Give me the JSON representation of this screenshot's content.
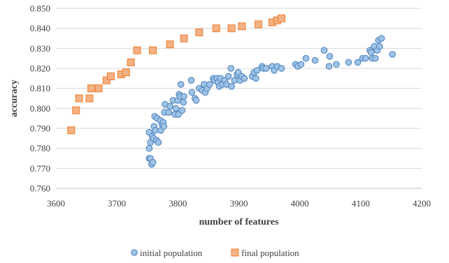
{
  "chart_data": {
    "type": "scatter",
    "xlabel": "number of features",
    "ylabel": "accuracy",
    "xlim": [
      3600,
      4200
    ],
    "ylim": [
      0.76,
      0.85
    ],
    "x_ticks": [
      "3600",
      "3700",
      "3800",
      "3900",
      "4000",
      "4100",
      "4200"
    ],
    "y_ticks": [
      "0.760",
      "0.770",
      "0.780",
      "0.790",
      "0.800",
      "0.810",
      "0.820",
      "0.830",
      "0.840",
      "0.850"
    ],
    "grid": "horizontal",
    "legend_position": "bottom",
    "series": [
      {
        "name": "initial population",
        "color": "#9dc3e6",
        "edge_color": "#4f81bd",
        "marker": "circle",
        "points": [
          [
            3753,
            0.788
          ],
          [
            3753,
            0.78
          ],
          [
            3753,
            0.775
          ],
          [
            3755,
            0.783
          ],
          [
            3755,
            0.775
          ],
          [
            3757,
            0.772
          ],
          [
            3758,
            0.786
          ],
          [
            3759,
            0.773
          ],
          [
            3760,
            0.785
          ],
          [
            3761,
            0.791
          ],
          [
            3762,
            0.796
          ],
          [
            3763,
            0.789
          ],
          [
            3765,
            0.784
          ],
          [
            3766,
            0.795
          ],
          [
            3768,
            0.783
          ],
          [
            3771,
            0.794
          ],
          [
            3772,
            0.789
          ],
          [
            3774,
            0.792
          ],
          [
            3776,
            0.793
          ],
          [
            3777,
            0.791
          ],
          [
            3778,
            0.798
          ],
          [
            3779,
            0.802
          ],
          [
            3785,
            0.798
          ],
          [
            3787,
            0.801
          ],
          [
            3792,
            0.804
          ],
          [
            3795,
            0.797
          ],
          [
            3797,
            0.8
          ],
          [
            3800,
            0.804
          ],
          [
            3801,
            0.797
          ],
          [
            3802,
            0.807
          ],
          [
            3804,
            0.806
          ],
          [
            3805,
            0.812
          ],
          [
            3807,
            0.799
          ],
          [
            3809,
            0.803
          ],
          [
            3810,
            0.806
          ],
          [
            3822,
            0.814
          ],
          [
            3823,
            0.808
          ],
          [
            3828,
            0.805
          ],
          [
            3830,
            0.804
          ],
          [
            3835,
            0.81
          ],
          [
            3840,
            0.809
          ],
          [
            3843,
            0.812
          ],
          [
            3845,
            0.808
          ],
          [
            3848,
            0.81
          ],
          [
            3852,
            0.812
          ],
          [
            3858,
            0.815
          ],
          [
            3860,
            0.814
          ],
          [
            3864,
            0.815
          ],
          [
            3866,
            0.813
          ],
          [
            3868,
            0.811
          ],
          [
            3870,
            0.815
          ],
          [
            3873,
            0.812
          ],
          [
            3877,
            0.814
          ],
          [
            3880,
            0.812
          ],
          [
            3883,
            0.816
          ],
          [
            3887,
            0.82
          ],
          [
            3888,
            0.811
          ],
          [
            3893,
            0.814
          ],
          [
            3897,
            0.817
          ],
          [
            3899,
            0.818
          ],
          [
            3902,
            0.814
          ],
          [
            3905,
            0.816
          ],
          [
            3909,
            0.815
          ],
          [
            3922,
            0.816
          ],
          [
            3925,
            0.818
          ],
          [
            3928,
            0.815
          ],
          [
            3930,
            0.819
          ],
          [
            3938,
            0.821
          ],
          [
            3940,
            0.82
          ],
          [
            3945,
            0.82
          ],
          [
            3955,
            0.821
          ],
          [
            3958,
            0.819
          ],
          [
            3963,
            0.821
          ],
          [
            3970,
            0.82
          ],
          [
            3993,
            0.822
          ],
          [
            3997,
            0.821
          ],
          [
            4002,
            0.822
          ],
          [
            4010,
            0.825
          ],
          [
            4025,
            0.824
          ],
          [
            4040,
            0.829
          ],
          [
            4048,
            0.821
          ],
          [
            4049,
            0.826
          ],
          [
            4060,
            0.822
          ],
          [
            4080,
            0.823
          ],
          [
            4095,
            0.823
          ],
          [
            4103,
            0.825
          ],
          [
            4108,
            0.825
          ],
          [
            4115,
            0.829
          ],
          [
            4117,
            0.828
          ],
          [
            4119,
            0.825
          ],
          [
            4122,
            0.831
          ],
          [
            4124,
            0.825
          ],
          [
            4127,
            0.829
          ],
          [
            4129,
            0.834
          ],
          [
            4131,
            0.831
          ],
          [
            4134,
            0.835
          ],
          [
            4152,
            0.827
          ]
        ]
      },
      {
        "name": "final population",
        "color": "#f4b183",
        "edge_color": "#ed7d31",
        "marker": "square",
        "points": [
          [
            3625,
            0.789
          ],
          [
            3633,
            0.799
          ],
          [
            3638,
            0.805
          ],
          [
            3655,
            0.805
          ],
          [
            3658,
            0.81
          ],
          [
            3670,
            0.81
          ],
          [
            3683,
            0.814
          ],
          [
            3690,
            0.816
          ],
          [
            3707,
            0.817
          ],
          [
            3715,
            0.818
          ],
          [
            3723,
            0.823
          ],
          [
            3733,
            0.829
          ],
          [
            3759,
            0.829
          ],
          [
            3787,
            0.832
          ],
          [
            3810,
            0.835
          ],
          [
            3835,
            0.838
          ],
          [
            3863,
            0.84
          ],
          [
            3888,
            0.84
          ],
          [
            3905,
            0.841
          ],
          [
            3932,
            0.842
          ],
          [
            3955,
            0.843
          ],
          [
            3963,
            0.844
          ],
          [
            3970,
            0.845
          ]
        ]
      }
    ]
  }
}
